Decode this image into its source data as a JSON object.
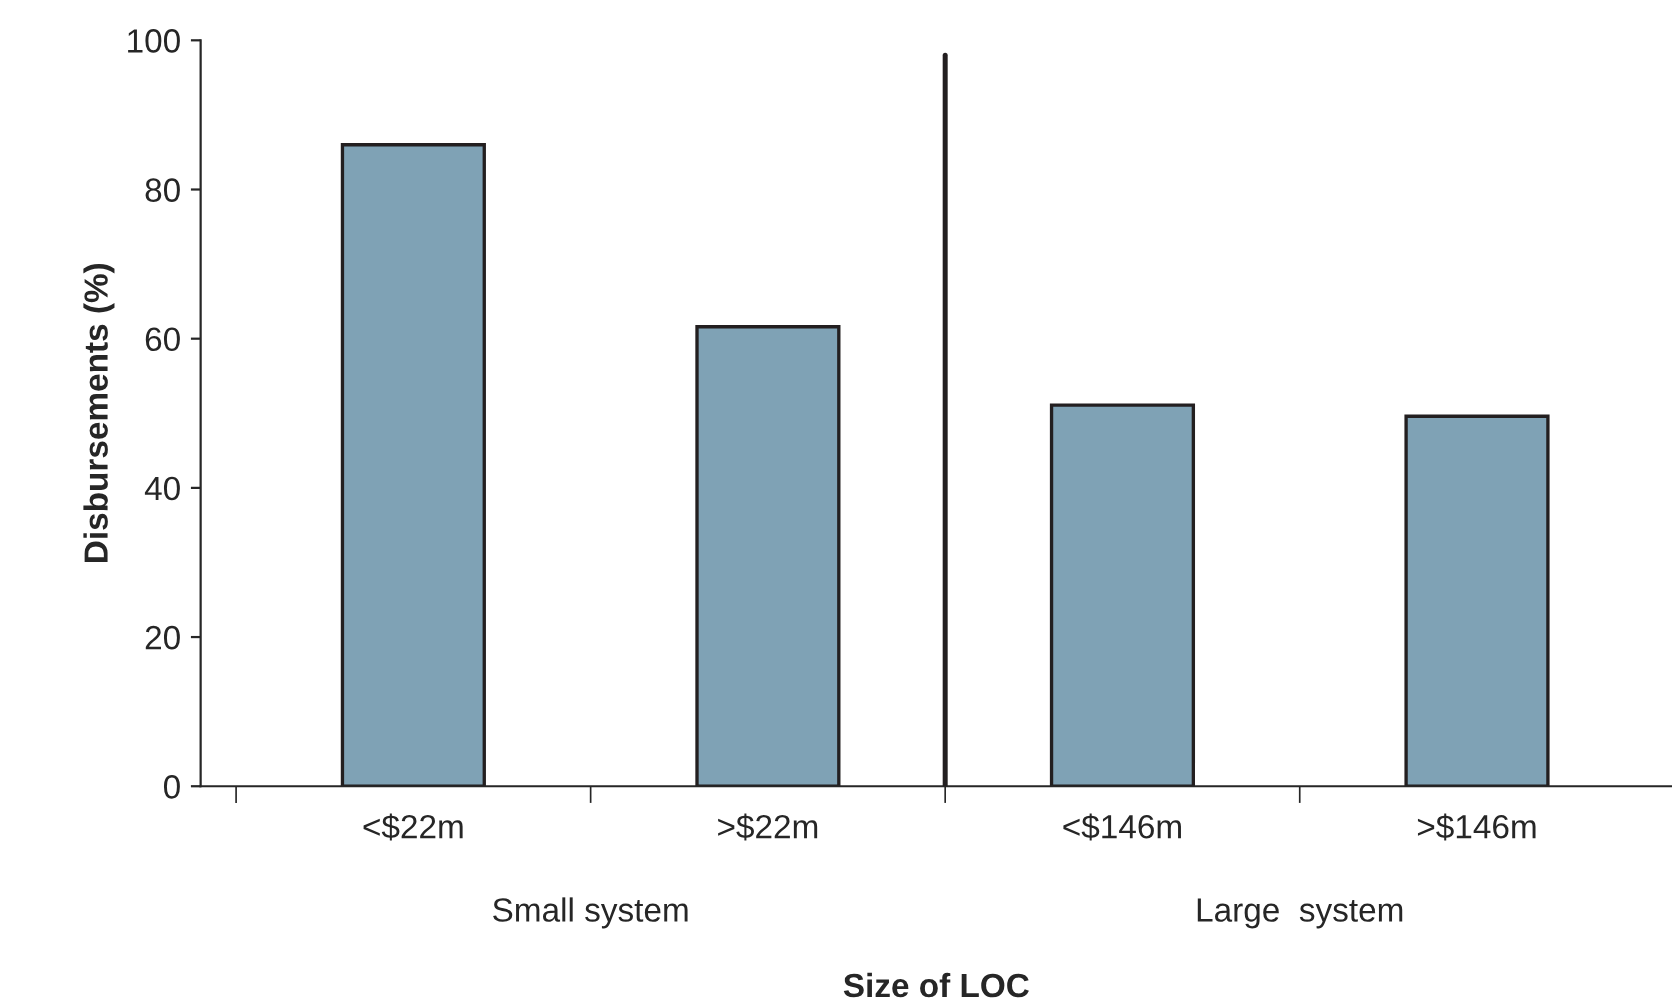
{
  "chart_data": {
    "type": "bar",
    "xlabel": "Size of LOC",
    "ylabel": "Disbursements (%)",
    "categories": [
      "<$22m",
      ">$22m",
      "<$146m",
      ">$146m"
    ],
    "values": [
      86,
      61.6,
      51.1,
      49.6
    ],
    "color": "#7fa2b5",
    "ylim": [
      0,
      100
    ],
    "yticks": [
      0,
      20,
      40,
      60,
      80,
      100
    ],
    "grid": false,
    "annotations": [
      "Small system",
      "Large  system"
    ]
  }
}
